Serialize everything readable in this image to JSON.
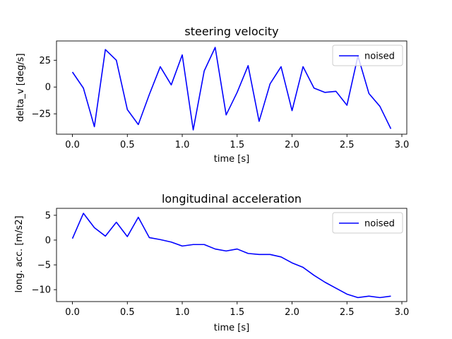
{
  "chart_data": [
    {
      "type": "line",
      "title": "steering velocity",
      "xlabel": "time [s]",
      "ylabel": "delta_v [deg/s]",
      "xlim": [
        -0.145,
        3.045
      ],
      "ylim": [
        -44,
        43
      ],
      "xticks": [
        0.0,
        0.5,
        1.0,
        1.5,
        2.0,
        2.5,
        3.0
      ],
      "xtick_labels": [
        "0.0",
        "0.5",
        "1.0",
        "1.5",
        "2.0",
        "2.5",
        "3.0"
      ],
      "yticks": [
        -25,
        0,
        25
      ],
      "ytick_labels": [
        "−25",
        "0",
        "25"
      ],
      "legend_position": "upper right",
      "grid": false,
      "series": [
        {
          "name": "noised",
          "color": "#0000ff",
          "x": [
            0.0,
            0.1,
            0.2,
            0.3,
            0.4,
            0.5,
            0.6,
            0.7,
            0.8,
            0.9,
            1.0,
            1.1,
            1.2,
            1.3,
            1.4,
            1.5,
            1.6,
            1.7,
            1.8,
            1.9,
            2.0,
            2.1,
            2.2,
            2.3,
            2.4,
            2.5,
            2.6,
            2.7,
            2.8,
            2.9
          ],
          "y": [
            14,
            -1,
            -37,
            35,
            25,
            -21,
            -35,
            -7,
            19,
            2,
            30,
            -40,
            15,
            37,
            -26,
            -5,
            20,
            -32,
            3,
            19,
            -22,
            19,
            -1,
            -5,
            -4,
            -17,
            29,
            -6,
            -18,
            -39
          ]
        }
      ]
    },
    {
      "type": "line",
      "title": "longitudinal acceleration",
      "xlabel": "time [s]",
      "ylabel": "long. acc. [m/s2]",
      "xlim": [
        -0.145,
        3.045
      ],
      "ylim": [
        -12.4,
        6.4
      ],
      "xticks": [
        0.0,
        0.5,
        1.0,
        1.5,
        2.0,
        2.5,
        3.0
      ],
      "xtick_labels": [
        "0.0",
        "0.5",
        "1.0",
        "1.5",
        "2.0",
        "2.5",
        "3.0"
      ],
      "yticks": [
        -10,
        -5,
        0,
        5
      ],
      "ytick_labels": [
        "−10",
        "−5",
        "0",
        "5"
      ],
      "legend_position": "upper right",
      "grid": false,
      "series": [
        {
          "name": "noised",
          "color": "#0000ff",
          "x": [
            0.0,
            0.1,
            0.2,
            0.3,
            0.4,
            0.5,
            0.6,
            0.7,
            0.8,
            0.9,
            1.0,
            1.1,
            1.2,
            1.3,
            1.4,
            1.5,
            1.6,
            1.7,
            1.8,
            1.9,
            2.0,
            2.1,
            2.2,
            2.3,
            2.4,
            2.5,
            2.6,
            2.7,
            2.8,
            2.9
          ],
          "y": [
            0.3,
            5.4,
            2.5,
            0.8,
            3.6,
            0.7,
            4.6,
            0.5,
            0.1,
            -0.4,
            -1.2,
            -0.9,
            -0.9,
            -1.8,
            -2.2,
            -1.8,
            -2.7,
            -2.9,
            -2.9,
            -3.4,
            -4.6,
            -5.5,
            -7.1,
            -8.5,
            -9.7,
            -10.9,
            -11.6,
            -11.3,
            -11.6,
            -11.3
          ]
        }
      ]
    }
  ]
}
